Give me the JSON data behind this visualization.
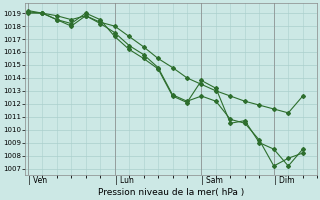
{
  "xlabel": "Pression niveau de la mer( hPa )",
  "bg_color": "#cce8e5",
  "grid_color": "#aacfcc",
  "line_color": "#2d6e2d",
  "ylim": [
    1006.5,
    1019.8
  ],
  "yticks": [
    1007,
    1008,
    1009,
    1010,
    1011,
    1012,
    1013,
    1014,
    1015,
    1016,
    1017,
    1018,
    1019
  ],
  "xtick_labels": [
    "| Ven",
    "| Lun",
    "| Sam",
    "| Dim"
  ],
  "xtick_positions": [
    0,
    3,
    6,
    8.5
  ],
  "xlim": [
    -0.1,
    10.0
  ],
  "series1_x": [
    0.0,
    0.5,
    1.0,
    1.5,
    2.0,
    2.5,
    3.0,
    3.5,
    4.0,
    4.5,
    5.0,
    5.5,
    6.0,
    6.5,
    7.0,
    7.5,
    8.0,
    8.5,
    9.0,
    9.5
  ],
  "series1_y": [
    1019.1,
    1019.0,
    1018.8,
    1018.5,
    1018.8,
    1018.3,
    1018.0,
    1017.2,
    1016.4,
    1015.5,
    1014.8,
    1014.0,
    1013.5,
    1013.0,
    1012.6,
    1012.2,
    1011.9,
    1011.6,
    1011.3,
    1012.6
  ],
  "series2_x": [
    0.0,
    0.5,
    1.0,
    1.5,
    2.0,
    2.5,
    3.0,
    3.5,
    4.0,
    4.5,
    5.0,
    5.5,
    6.0,
    6.5,
    7.0,
    7.5,
    8.0,
    8.5,
    9.0,
    9.5
  ],
  "series2_y": [
    1019.0,
    1019.0,
    1018.5,
    1018.2,
    1019.0,
    1018.5,
    1017.2,
    1016.2,
    1015.5,
    1014.7,
    1012.6,
    1012.1,
    1013.8,
    1013.2,
    1010.5,
    1010.7,
    1009.0,
    1008.5,
    1007.2,
    1008.5
  ],
  "series3_x": [
    0.0,
    0.5,
    1.0,
    1.5,
    2.0,
    2.5,
    3.0,
    3.5,
    4.0,
    4.5,
    5.0,
    5.5,
    6.0,
    6.5,
    7.0,
    7.5,
    8.0,
    8.5,
    9.0,
    9.5
  ],
  "series3_y": [
    1019.2,
    1019.0,
    1018.5,
    1018.0,
    1018.8,
    1018.2,
    1017.5,
    1016.5,
    1015.8,
    1014.8,
    1012.7,
    1012.2,
    1012.6,
    1012.2,
    1010.8,
    1010.5,
    1009.2,
    1007.2,
    1007.8,
    1008.2
  ]
}
